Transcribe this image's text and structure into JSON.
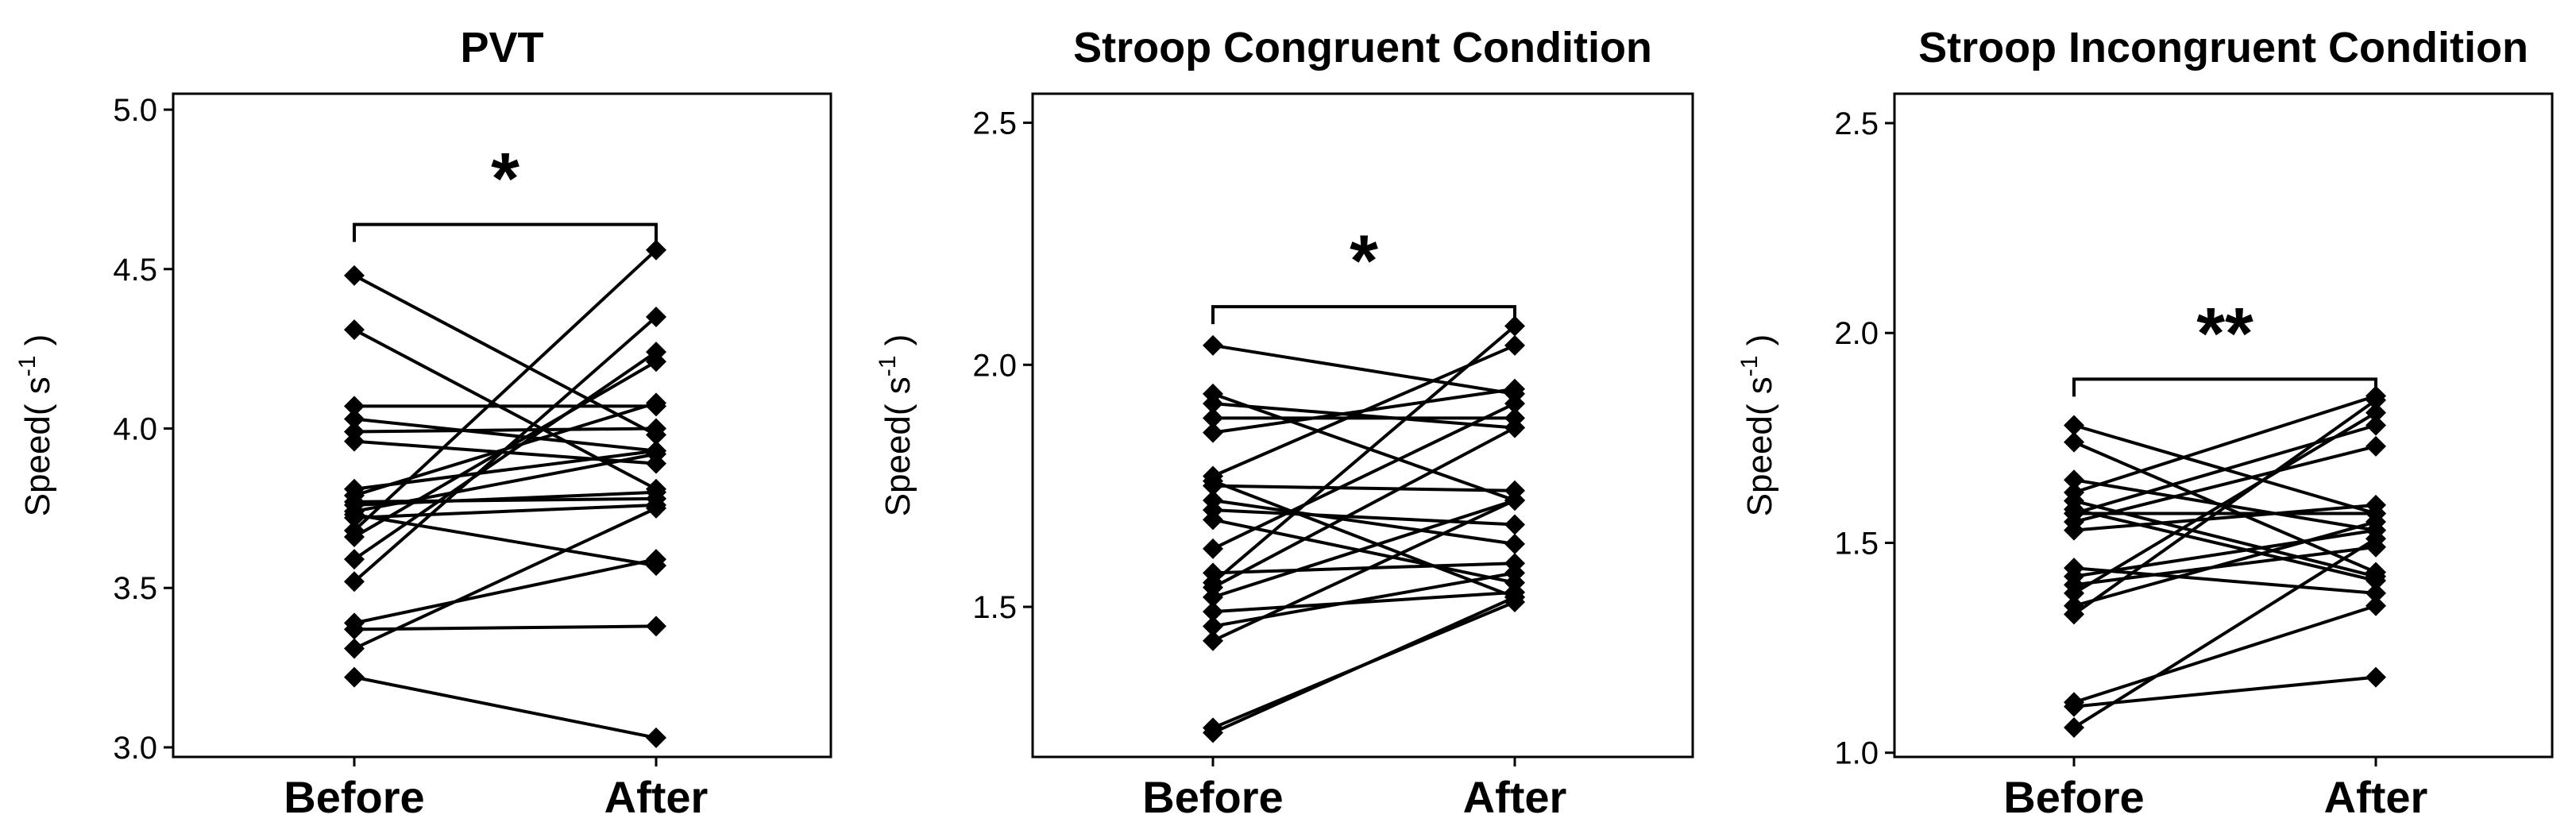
{
  "chart_data": [
    {
      "type": "line",
      "title": "PVT",
      "ylabel": "Speed( s",
      "ylabel_exponent": "-1",
      "ylabel_close": " )",
      "xlabel": "",
      "categories": [
        "Before",
        "After"
      ],
      "ylim": [
        2.97,
        5.05
      ],
      "yticks": [
        3.0,
        3.5,
        4.0,
        4.5,
        5.0
      ],
      "ytick_labels": [
        "3.0",
        "3.5",
        "4.0",
        "4.5",
        "5.0"
      ],
      "significance": "*",
      "bracket_y": 4.64,
      "pairs": [
        [
          4.48,
          3.98
        ],
        [
          4.31,
          3.81
        ],
        [
          4.07,
          4.07
        ],
        [
          4.03,
          3.93
        ],
        [
          3.99,
          4.0
        ],
        [
          3.96,
          3.89
        ],
        [
          3.81,
          3.93
        ],
        [
          3.79,
          4.08
        ],
        [
          3.77,
          3.78
        ],
        [
          3.76,
          3.8
        ],
        [
          3.74,
          3.92
        ],
        [
          3.72,
          3.76
        ],
        [
          3.66,
          4.21
        ],
        [
          3.59,
          4.24
        ],
        [
          3.52,
          4.35
        ],
        [
          3.39,
          3.59
        ],
        [
          3.37,
          3.38
        ],
        [
          3.31,
          3.75
        ],
        [
          3.22,
          3.03
        ],
        [
          3.68,
          4.56
        ],
        [
          3.73,
          3.57
        ]
      ]
    },
    {
      "type": "line",
      "title": "Stroop Congruent Condition",
      "ylabel": "Speed( s",
      "ylabel_exponent": "-1",
      "ylabel_close": " )",
      "xlabel": "",
      "categories": [
        "Before",
        "After"
      ],
      "ylim": [
        1.19,
        2.56
      ],
      "yticks": [
        1.5,
        2.0,
        2.5
      ],
      "ytick_labels": [
        "1.5",
        "2.0",
        "2.5"
      ],
      "significance": "*",
      "bracket_y": 2.12,
      "pairs": [
        [
          2.04,
          1.94
        ],
        [
          1.94,
          1.72
        ],
        [
          1.92,
          1.87
        ],
        [
          1.89,
          1.89
        ],
        [
          1.86,
          1.95
        ],
        [
          1.77,
          2.04
        ],
        [
          1.75,
          1.74
        ],
        [
          1.72,
          1.63
        ],
        [
          1.7,
          1.67
        ],
        [
          1.68,
          1.55
        ],
        [
          1.62,
          1.92
        ],
        [
          1.57,
          1.59
        ],
        [
          1.55,
          2.08
        ],
        [
          1.52,
          1.72
        ],
        [
          1.49,
          1.53
        ],
        [
          1.46,
          1.57
        ],
        [
          1.43,
          1.72
        ],
        [
          1.25,
          1.51
        ],
        [
          1.24,
          1.52
        ],
        [
          1.76,
          1.52
        ],
        [
          1.54,
          1.87
        ]
      ]
    },
    {
      "type": "line",
      "title": "Stroop Incongruent Condition",
      "ylabel": "Speed( s",
      "ylabel_exponent": "-1",
      "ylabel_close": " )",
      "xlabel": "",
      "categories": [
        "Before",
        "After"
      ],
      "ylim": [
        0.99,
        2.57
      ],
      "yticks": [
        1.0,
        1.5,
        2.0,
        2.5
      ],
      "ytick_labels": [
        "1.0",
        "1.5",
        "2.0",
        "2.5"
      ],
      "significance": "**",
      "bracket_y": 1.89,
      "pairs": [
        [
          1.78,
          1.57
        ],
        [
          1.74,
          1.43
        ],
        [
          1.65,
          1.53
        ],
        [
          1.62,
          1.85
        ],
        [
          1.6,
          1.42
        ],
        [
          1.57,
          1.57
        ],
        [
          1.55,
          1.73
        ],
        [
          1.53,
          1.59
        ],
        [
          1.44,
          1.38
        ],
        [
          1.42,
          1.53
        ],
        [
          1.4,
          1.49
        ],
        [
          1.38,
          1.81
        ],
        [
          1.35,
          1.55
        ],
        [
          1.33,
          1.84
        ],
        [
          1.12,
          1.35
        ],
        [
          1.11,
          1.18
        ],
        [
          1.06,
          1.51
        ],
        [
          1.57,
          1.78
        ],
        [
          1.58,
          1.41
        ]
      ]
    }
  ]
}
